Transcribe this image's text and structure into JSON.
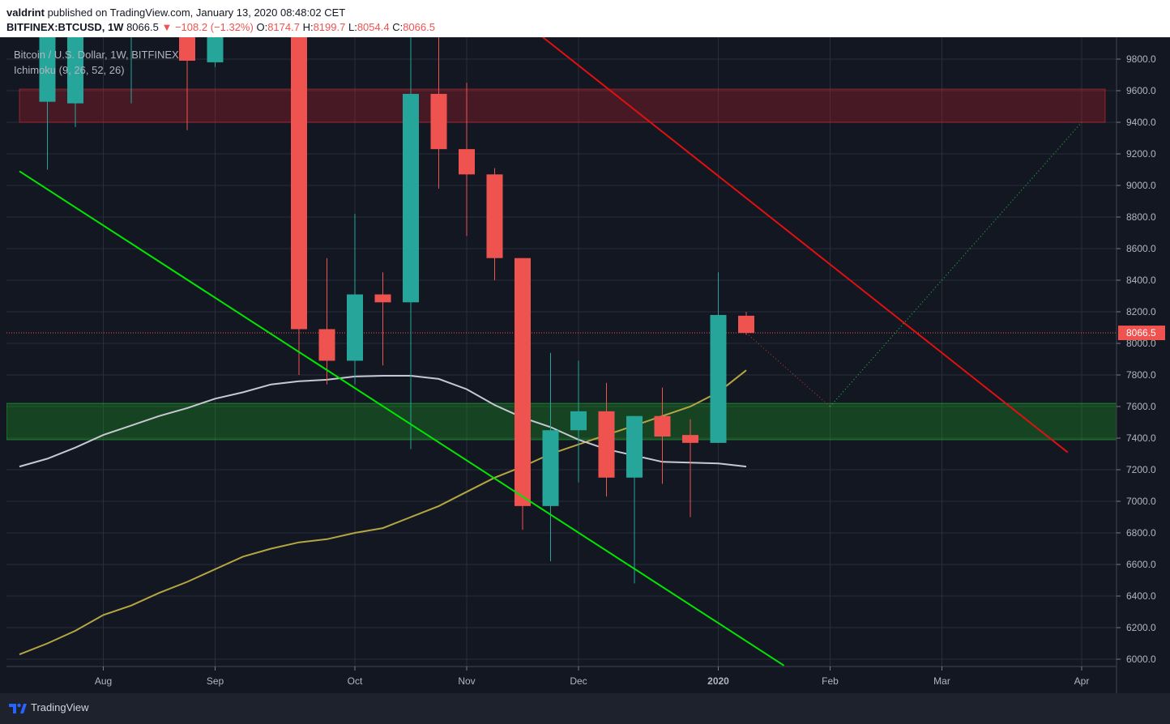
{
  "header": {
    "author": "valdrint",
    "publish_text": " published on TradingView.com, January 13, 2020 08:48:02 CET",
    "symbol": "BITFINEX:BTCUSD, 1W",
    "last": "8066.5",
    "change": "−108.2 (−1.32%)",
    "o_label": "O:",
    "o_value": "8174.7",
    "h_label": "H:",
    "h_value": "8199.7",
    "l_label": "L:",
    "l_value": "8054.4",
    "c_label": "C:",
    "c_value": "8066.5"
  },
  "chart_data": {
    "type": "candlestick",
    "title": "Bitcoin / U.S. Dollar, 1W, BITFINEX",
    "indicator_label": "Ichimoku (9, 26, 52, 26)",
    "ylim": [
      5950,
      9970
    ],
    "y_ticks": [
      "9800.0",
      "9600.0",
      "9400.0",
      "9200.0",
      "9000.0",
      "8800.0",
      "8600.0",
      "8400.0",
      "8200.0",
      "8000.0",
      "7800.0",
      "7600.0",
      "7400.0",
      "7200.0",
      "7000.0",
      "6800.0",
      "6600.0",
      "6400.0",
      "6200.0",
      "6000.0"
    ],
    "x_labels": [
      {
        "week": 3.0,
        "label": "Aug"
      },
      {
        "week": 7.0,
        "label": "Sep"
      },
      {
        "week": 12.0,
        "label": "Oct"
      },
      {
        "week": 16.0,
        "label": "Nov"
      },
      {
        "week": 20.0,
        "label": "Dec"
      },
      {
        "week": 25.0,
        "label": "2020"
      },
      {
        "week": 29.0,
        "label": "Feb"
      },
      {
        "week": 33.0,
        "label": "Mar"
      },
      {
        "week": 38.0,
        "label": "Apr"
      }
    ],
    "last_price": 8066.5,
    "last_price_label": "8066.5",
    "candles": [
      {
        "w": 1.0,
        "o": 9530,
        "h": 10000,
        "l": 9100,
        "c": 10000
      },
      {
        "w": 2.0,
        "o": 9520,
        "h": 10000,
        "l": 9370,
        "c": 10000
      },
      {
        "w": 3.0,
        "o": 10000,
        "h": 10000,
        "l": 10000,
        "c": 10000
      },
      {
        "w": 4.0,
        "o": 10000,
        "h": 10000,
        "l": 9520,
        "c": 10000
      },
      {
        "w": 6.0,
        "o": 10000,
        "h": 10000,
        "l": 9350,
        "c": 9790
      },
      {
        "w": 7.0,
        "o": 9780,
        "h": 10000,
        "l": 9750,
        "c": 10000
      },
      {
        "w": 10.0,
        "o": 10000,
        "h": 10000,
        "l": 7800,
        "c": 8090
      },
      {
        "w": 11.0,
        "o": 8090,
        "h": 8540,
        "l": 7740,
        "c": 7890
      },
      {
        "w": 12.0,
        "o": 7890,
        "h": 8820,
        "l": 7740,
        "c": 8310
      },
      {
        "w": 13.0,
        "o": 8310,
        "h": 8450,
        "l": 7860,
        "c": 8260
      },
      {
        "w": 14.0,
        "o": 8260,
        "h": 10000,
        "l": 7330,
        "c": 9580
      },
      {
        "w": 15.0,
        "o": 9580,
        "h": 10000,
        "l": 8980,
        "c": 9230
      },
      {
        "w": 16.0,
        "o": 9230,
        "h": 9650,
        "l": 8680,
        "c": 9070
      },
      {
        "w": 17.0,
        "o": 9070,
        "h": 9110,
        "l": 8400,
        "c": 8540
      },
      {
        "w": 18.0,
        "o": 8540,
        "h": 8540,
        "l": 6820,
        "c": 6970
      },
      {
        "w": 19.0,
        "o": 6970,
        "h": 7940,
        "l": 6620,
        "c": 7450
      },
      {
        "w": 20.0,
        "o": 7450,
        "h": 7890,
        "l": 7120,
        "c": 7570
      },
      {
        "w": 21.0,
        "o": 7570,
        "h": 7750,
        "l": 7030,
        "c": 7150
      },
      {
        "w": 22.0,
        "o": 7150,
        "h": 7540,
        "l": 6480,
        "c": 7540
      },
      {
        "w": 23.0,
        "o": 7540,
        "h": 7720,
        "l": 7110,
        "c": 7410
      },
      {
        "w": 24.0,
        "o": 7420,
        "h": 7520,
        "l": 6900,
        "c": 7370
      },
      {
        "w": 25.0,
        "o": 7370,
        "h": 8450,
        "l": 7370,
        "c": 8180
      },
      {
        "w": 26.0,
        "o": 8175,
        "h": 8200,
        "l": 8054,
        "c": 8066
      }
    ],
    "ichimoku_base_line": {
      "x": [
        0.0,
        1.0,
        2.0,
        3.0,
        4.0,
        5.0,
        6.0,
        7.0,
        8.0,
        9.0,
        10.0,
        11.0,
        12.0,
        13.0,
        14.0,
        15.0,
        16.0,
        17.0,
        18.0,
        19.0,
        20.0,
        21.0,
        22.0,
        23.0,
        24.0,
        25.0,
        26.0
      ],
      "y": [
        7220,
        7270,
        7340,
        7420,
        7480,
        7540,
        7590,
        7650,
        7690,
        7740,
        7760,
        7770,
        7790,
        7795,
        7795,
        7775,
        7710,
        7610,
        7530,
        7470,
        7390,
        7330,
        7290,
        7250,
        7245,
        7240,
        7220
      ]
    },
    "ichimoku_lagging_line": {
      "x": [
        0.0,
        1.0,
        2.0,
        3.0,
        4.0,
        5.0,
        6.0,
        7.0,
        8.0,
        9.0,
        10.0,
        11.0,
        12.0,
        13.0,
        14.0,
        15.0,
        16.0,
        17.0,
        18.0,
        19.0,
        20.0,
        21.0,
        22.0,
        23.0,
        24.0,
        25.0,
        26.0
      ],
      "y": [
        6030,
        6100,
        6180,
        6280,
        6340,
        6420,
        6490,
        6570,
        6650,
        6700,
        6740,
        6760,
        6800,
        6830,
        6900,
        6970,
        7060,
        7150,
        7220,
        7300,
        7360,
        7420,
        7480,
        7540,
        7600,
        7690,
        7830
      ]
    },
    "resistance_zone": {
      "from": 9400,
      "to": 9610
    },
    "support_zone": {
      "from": 7390,
      "to": 7620
    },
    "descending_support_line": {
      "x": [
        0.0,
        27.35
      ],
      "y": [
        9090,
        5960
      ]
    },
    "descending_resistance_line": {
      "x": [
        18.5,
        37.5
      ],
      "y": [
        9970,
        7310
      ]
    },
    "projection_down": {
      "x": [
        26.0,
        29.0
      ],
      "y": [
        8066,
        7600
      ]
    },
    "projection_up": {
      "x": [
        29.0,
        38.0
      ],
      "y": [
        7600,
        9400
      ]
    }
  },
  "footer": {
    "brand": "TradingView"
  },
  "colors": {
    "bg": "#131722",
    "grid": "#2a2e39",
    "up": "#26a69a",
    "down": "#ef5350",
    "text": "#b2b5be",
    "support_line": "#00e600",
    "resistance_line": "#e01010",
    "base_line": "#c8c8d0",
    "lagging_line": "#b5a642"
  }
}
